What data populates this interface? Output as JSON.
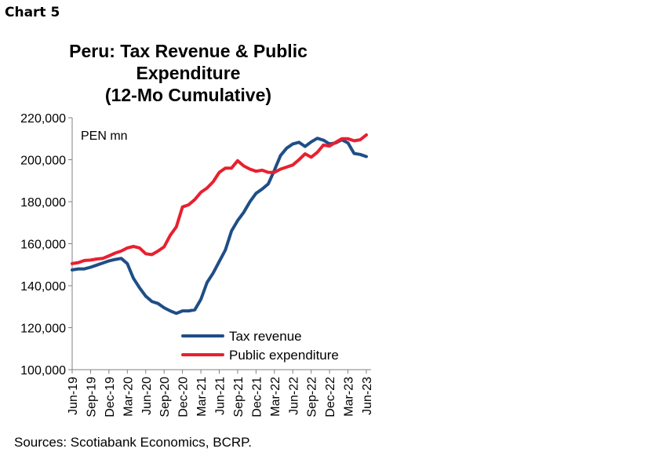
{
  "label": "Chart 5",
  "sources": "Sources: Scotiabank Economics, BCRP.",
  "chart_data": {
    "type": "line",
    "title": [
      "Peru: Tax Revenue & Public",
      "Expenditure",
      "(12-Mo Cumulative)"
    ],
    "unit_label": "PEN mn",
    "xlabel": "",
    "ylabel": "",
    "ylim": [
      100000,
      220000
    ],
    "yticks": [
      "100,000",
      "120,000",
      "140,000",
      "160,000",
      "180,000",
      "200,000",
      "220,000"
    ],
    "ytick_values": [
      100000,
      120000,
      140000,
      160000,
      180000,
      200000,
      220000
    ],
    "xtick_labels": [
      "Jun-19",
      "Sep-19",
      "Dec-19",
      "Mar-20",
      "Jun-20",
      "Sep-20",
      "Dec-20",
      "Mar-21",
      "Jun-21",
      "Sep-21",
      "Dec-21",
      "Mar-22",
      "Jun-22",
      "Sep-22",
      "Dec-22",
      "Mar-23",
      "Jun-23"
    ],
    "x_start": "Jun-19",
    "x_end": "Jun-23",
    "x_frequency": "monthly",
    "grid": false,
    "legend_position": "bottom-right",
    "series": [
      {
        "name": "Tax revenue",
        "color": "#1F4E86",
        "values": [
          147500,
          148000,
          148000,
          148800,
          149800,
          150800,
          151800,
          152500,
          153000,
          150500,
          143500,
          139000,
          135000,
          132500,
          131500,
          129500,
          128000,
          126800,
          128000,
          128000,
          128500,
          133500,
          141500,
          146000,
          151500,
          157000,
          166000,
          171000,
          175000,
          180000,
          184000,
          186000,
          188500,
          195000,
          202000,
          205500,
          207500,
          208300,
          206300,
          208500,
          210200,
          209300,
          207500,
          208000,
          209500,
          208000,
          203000,
          202500,
          201500
        ]
      },
      {
        "name": "Public expenditure",
        "color": "#E8202F",
        "values": [
          150500,
          151000,
          152000,
          152200,
          152700,
          153000,
          154200,
          155500,
          156500,
          158000,
          158700,
          158000,
          155200,
          154800,
          156500,
          158500,
          164000,
          168000,
          177500,
          178500,
          181000,
          184500,
          186500,
          189500,
          194000,
          196000,
          196000,
          199500,
          197000,
          195500,
          194500,
          195000,
          194000,
          194000,
          195500,
          196500,
          197500,
          200000,
          202800,
          201200,
          203500,
          207000,
          206500,
          208300,
          210000,
          210000,
          209000,
          209500,
          211800
        ]
      }
    ]
  }
}
